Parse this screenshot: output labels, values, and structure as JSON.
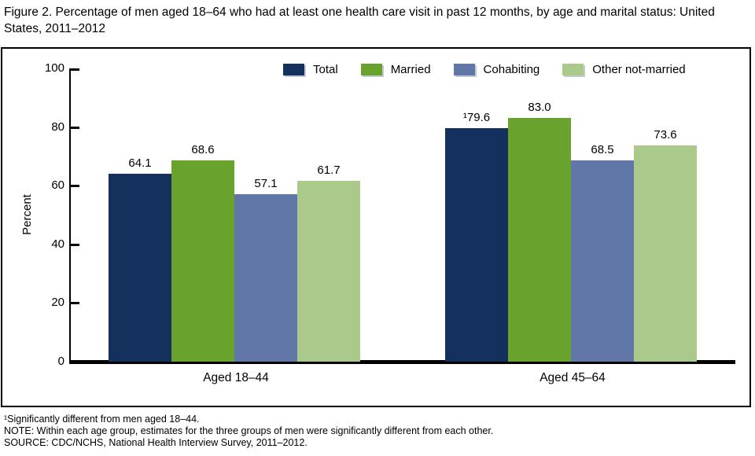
{
  "title": "Figure 2. Percentage of men aged 18–64 who had at least one health care visit in past 12 months, by age and marital status: United States, 2011–2012",
  "chart_data": {
    "type": "bar",
    "title": "Percentage of men aged 18–64 who had at least one health care visit in past 12 months, by age and marital status",
    "categories": [
      "Aged 18–44",
      "Aged 45–64"
    ],
    "series": [
      {
        "name": "Total",
        "color": "#14305c",
        "values": [
          64.1,
          79.6
        ],
        "value_labels": [
          "64.1",
          "¹79.6"
        ]
      },
      {
        "name": "Married",
        "color": "#6aa22e",
        "values": [
          68.6,
          83.0
        ],
        "value_labels": [
          "68.6",
          "83.0"
        ]
      },
      {
        "name": "Cohabiting",
        "color": "#6077a8",
        "values": [
          57.1,
          68.5
        ],
        "value_labels": [
          "57.1",
          "68.5"
        ]
      },
      {
        "name": "Other not-married",
        "color": "#abc98b",
        "values": [
          61.7,
          73.6
        ],
        "value_labels": [
          "61.7",
          "73.6"
        ]
      }
    ],
    "xlabel": "",
    "ylabel": "Percent",
    "ylim": [
      0,
      100
    ],
    "yticks": [
      0,
      20,
      40,
      60,
      80,
      100
    ],
    "legend_position": "top-inside",
    "grid": false
  },
  "footnotes": [
    "¹Significantly different from men aged 18–44.",
    "NOTE: Within each age group, estimates for the three groups of men were significantly different from each other.",
    "SOURCE: CDC/NCHS, National Health Interview Survey, 2011–2012."
  ]
}
